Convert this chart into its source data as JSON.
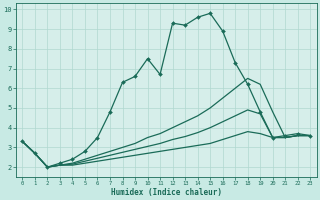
{
  "xlabel": "Humidex (Indice chaleur)",
  "bg_color": "#c8eae4",
  "plot_bg_color": "#d6eeea",
  "grid_color": "#b0d8d0",
  "line_color": "#1a6b58",
  "xlim": [
    -0.5,
    23.5
  ],
  "ylim": [
    1.5,
    10.3
  ],
  "xticks": [
    0,
    1,
    2,
    3,
    4,
    5,
    6,
    7,
    8,
    9,
    10,
    11,
    12,
    13,
    14,
    15,
    16,
    17,
    18,
    19,
    20,
    21,
    22,
    23
  ],
  "yticks": [
    2,
    3,
    4,
    5,
    6,
    7,
    8,
    9,
    10
  ],
  "series": [
    {
      "x": [
        0,
        1,
        2,
        3,
        4,
        5,
        6,
        7,
        8,
        9,
        10,
        11,
        12,
        13,
        14,
        15,
        16,
        17,
        18,
        19,
        20,
        21,
        22,
        23
      ],
      "y": [
        3.3,
        2.7,
        2.0,
        2.2,
        2.4,
        2.8,
        3.5,
        4.8,
        6.3,
        6.6,
        7.5,
        6.7,
        9.3,
        9.2,
        9.6,
        9.8,
        8.9,
        7.3,
        6.2,
        4.8,
        3.5,
        3.6,
        3.7,
        3.6
      ],
      "marker": true
    },
    {
      "x": [
        0,
        1,
        2,
        3,
        4,
        5,
        6,
        7,
        8,
        9,
        10,
        11,
        12,
        13,
        14,
        15,
        16,
        17,
        18,
        19,
        20,
        21,
        22,
        23
      ],
      "y": [
        3.3,
        2.7,
        2.0,
        2.1,
        2.2,
        2.4,
        2.6,
        2.8,
        3.0,
        3.2,
        3.5,
        3.7,
        4.0,
        4.3,
        4.6,
        5.0,
        5.5,
        6.0,
        6.5,
        6.2,
        4.8,
        3.5,
        3.6,
        3.6
      ],
      "marker": false
    },
    {
      "x": [
        0,
        1,
        2,
        3,
        4,
        5,
        6,
        7,
        8,
        9,
        10,
        11,
        12,
        13,
        14,
        15,
        16,
        17,
        18,
        19,
        20,
        21,
        22,
        23
      ],
      "y": [
        3.3,
        2.7,
        2.0,
        2.1,
        2.15,
        2.3,
        2.45,
        2.6,
        2.75,
        2.9,
        3.05,
        3.2,
        3.4,
        3.55,
        3.75,
        4.0,
        4.3,
        4.6,
        4.9,
        4.7,
        3.5,
        3.5,
        3.6,
        3.6
      ],
      "marker": false
    },
    {
      "x": [
        0,
        1,
        2,
        3,
        4,
        5,
        6,
        7,
        8,
        9,
        10,
        11,
        12,
        13,
        14,
        15,
        16,
        17,
        18,
        19,
        20,
        21,
        22,
        23
      ],
      "y": [
        3.3,
        2.7,
        2.0,
        2.1,
        2.1,
        2.2,
        2.3,
        2.4,
        2.5,
        2.6,
        2.7,
        2.8,
        2.9,
        3.0,
        3.1,
        3.2,
        3.4,
        3.6,
        3.8,
        3.7,
        3.5,
        3.5,
        3.6,
        3.6
      ],
      "marker": false
    }
  ]
}
